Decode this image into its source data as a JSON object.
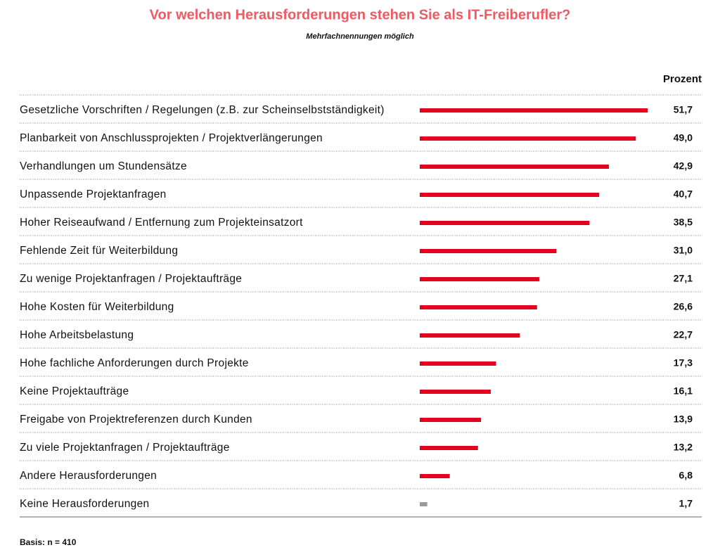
{
  "chart_data": {
    "type": "bar",
    "orientation": "horizontal",
    "title": "Vor welchen Herausforderungen stehen Sie als IT-Freiberufler?",
    "subtitle": "Mehrfachnennungen möglich",
    "value_header": "Prozent",
    "note": "Basis: n = 410",
    "categories": [
      "Gesetzliche Vorschriften / Regelungen (z.B. zur Scheinselbstständigkeit)",
      "Planbarkeit von Anschlussprojekten / Projektverlängerungen",
      "Verhandlungen um Stundensätze",
      "Unpassende Projektanfragen",
      "Hoher Reiseaufwand / Entfernung zum Projekteinsatzort",
      "Fehlende Zeit für Weiterbildung",
      "Zu wenige Projektanfragen / Projektaufträge",
      "Hohe Kosten für Weiterbildung",
      "Hohe Arbeitsbelastung",
      "Hohe fachliche Anforderungen durch Projekte",
      "Keine Projektaufträge",
      "Freigabe von Projektreferenzen durch Kunden",
      "Zu viele Projektanfragen / Projektaufträge",
      "Andere Herausforderungen",
      "Keine Herausforderungen"
    ],
    "values": [
      51.7,
      49.0,
      42.9,
      40.7,
      38.5,
      31.0,
      27.1,
      26.6,
      22.7,
      17.3,
      16.1,
      13.9,
      13.2,
      6.8,
      1.7
    ],
    "value_labels": [
      "51,7",
      "49,0",
      "42,9",
      "40,7",
      "38,5",
      "31,0",
      "27,1",
      "26,6",
      "22,7",
      "17,3",
      "16,1",
      "13,9",
      "13,2",
      "6,8",
      "1,7"
    ],
    "colors": [
      "#e2001a",
      "#e2001a",
      "#e2001a",
      "#e2001a",
      "#e2001a",
      "#e2001a",
      "#e2001a",
      "#e2001a",
      "#e2001a",
      "#e2001a",
      "#e2001a",
      "#e2001a",
      "#e2001a",
      "#e2001a",
      "#9a9a9a"
    ]
  }
}
